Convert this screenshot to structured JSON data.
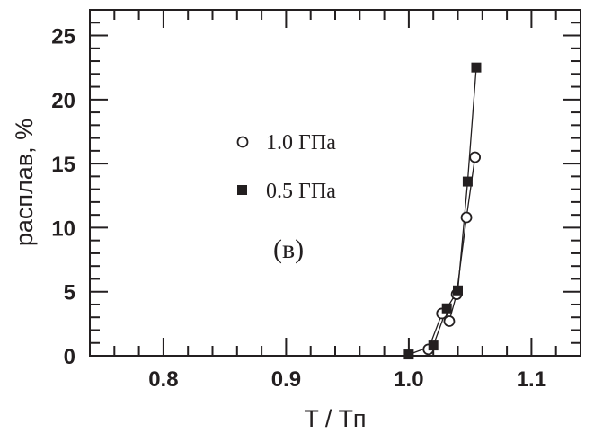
{
  "chart_data": {
    "type": "scatter",
    "xlabel": "T / Tп",
    "ylabel": "расплав, %",
    "xlim": [
      0.74,
      1.14
    ],
    "ylim": [
      0,
      27
    ],
    "xticks": [
      0.8,
      0.9,
      1.0,
      1.1
    ],
    "xtick_labels": [
      "0.8",
      "0.9",
      "1.0",
      "1.1"
    ],
    "yticks": [
      0,
      5,
      10,
      15,
      20,
      25
    ],
    "ytick_labels": [
      "0",
      "5",
      "10",
      "15",
      "20",
      "25"
    ],
    "grid": false,
    "legend_position": "center-left",
    "annotation": "(в)",
    "series": [
      {
        "name": "1.0 ГПа",
        "marker": "open-circle",
        "color": "#231f20",
        "x": [
          1.016,
          1.027,
          1.033,
          1.039,
          1.047,
          1.054
        ],
        "y": [
          0.5,
          3.3,
          2.7,
          4.8,
          10.8,
          15.5
        ]
      },
      {
        "name": "0.5 ГПа",
        "marker": "filled-square",
        "color": "#231f20",
        "x": [
          1.0,
          1.02,
          1.031,
          1.04,
          1.048,
          1.055
        ],
        "y": [
          0.1,
          0.8,
          3.7,
          5.1,
          13.6,
          22.5
        ]
      }
    ]
  }
}
